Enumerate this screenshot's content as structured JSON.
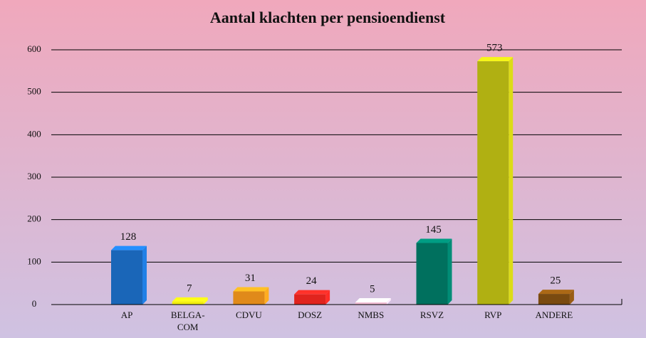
{
  "chart_data": {
    "type": "bar",
    "title": "Aantal klachten per pensioendienst",
    "categories": [
      "AP",
      "BELGA-COM",
      "CDVU",
      "DOSZ",
      "NMBS",
      "RSVZ",
      "RVP",
      "ANDERE"
    ],
    "values": [
      128,
      7,
      31,
      24,
      5,
      145,
      573,
      25
    ],
    "colors": [
      "#1a66b8",
      "#f2ee10",
      "#e08a1a",
      "#e0241e",
      "#f2bcd4",
      "#00705e",
      "#b0b012",
      "#7a4a10"
    ],
    "ylim": [
      0,
      600
    ],
    "yticks": [
      0,
      100,
      200,
      300,
      400,
      500,
      600
    ],
    "grid": true
  }
}
